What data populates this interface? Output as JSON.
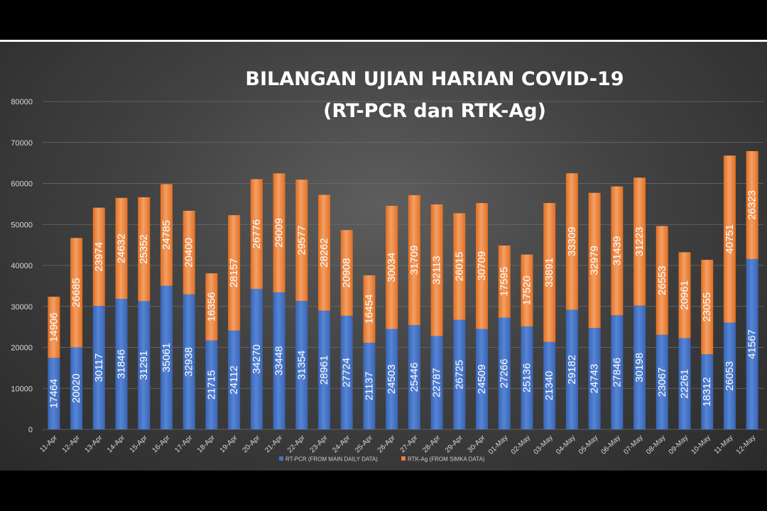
{
  "chart_data": {
    "type": "bar",
    "stacked": true,
    "title": "BILANGAN UJIAN HARIAN COVID-19",
    "subtitle": "(RT-PCR dan RTK-Ag)",
    "xlabel": "",
    "ylabel": "",
    "ylim": [
      0,
      80000
    ],
    "yticks": [
      0,
      10000,
      20000,
      30000,
      40000,
      50000,
      60000,
      70000,
      80000
    ],
    "grid": true,
    "legend_position": "bottom",
    "categories": [
      "11-Apr",
      "12-Apr",
      "13-Apr",
      "14-Apr",
      "15-Apr",
      "16-Apr",
      "17-Apr",
      "18-Apr",
      "19-Apr",
      "20-Apr",
      "21-Apr",
      "22-Apr",
      "23-Apr",
      "24-Apr",
      "25-Apr",
      "26-Apr",
      "27-Apr",
      "28-Apr",
      "29-Apr",
      "30-Apr",
      "01-May",
      "02-May",
      "03-May",
      "04-May",
      "05-May",
      "06-May",
      "07-May",
      "08-May",
      "09-May",
      "10-May",
      "11-May",
      "12-May"
    ],
    "series": [
      {
        "name": "RT-PCR (FROM MAIN DAILY DATA)",
        "color": "#4472C4",
        "values": [
          17464,
          20020,
          30117,
          31846,
          31291,
          35061,
          32938,
          21715,
          24112,
          34270,
          33448,
          31354,
          28961,
          27724,
          21137,
          24503,
          25446,
          22787,
          26725,
          24509,
          27266,
          25136,
          21340,
          29182,
          24743,
          27846,
          30198,
          23067,
          22261,
          18312,
          26053,
          41567
        ]
      },
      {
        "name": "RTK-Ag (FROM SIMKA DATA)",
        "color": "#ED7D31",
        "values": [
          14906,
          26685,
          23974,
          24632,
          25352,
          24785,
          20400,
          16356,
          28157,
          26776,
          29009,
          29577,
          28262,
          20908,
          16454,
          30034,
          31709,
          32113,
          26015,
          30709,
          17595,
          17520,
          33891,
          33309,
          32979,
          31439,
          31223,
          26553,
          20961,
          23055,
          40751,
          26323
        ]
      }
    ]
  }
}
